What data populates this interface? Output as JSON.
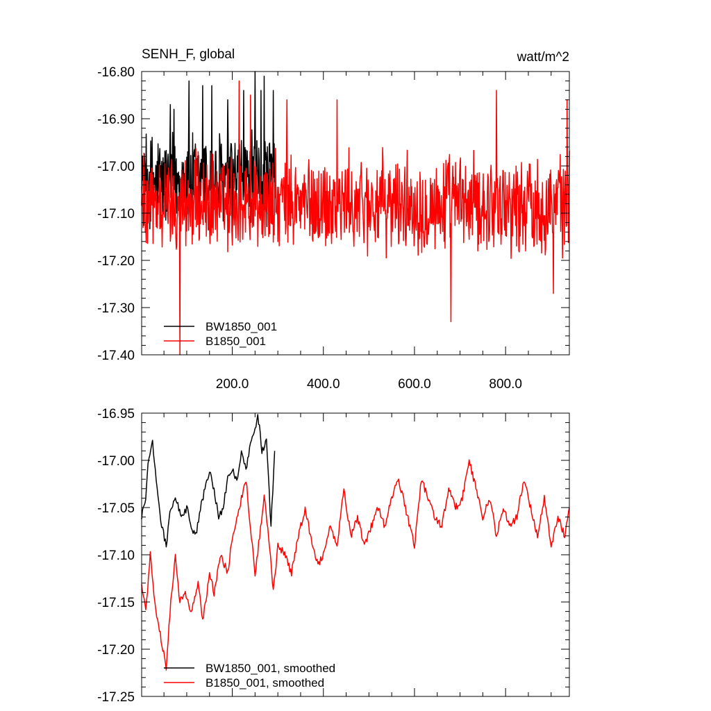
{
  "chart_data": [
    {
      "type": "line",
      "title": "SENH_F, global",
      "units": "watt/m^2",
      "xlim": [
        1,
        940
      ],
      "ylim": [
        -17.4,
        -16.8
      ],
      "yticks": [
        -17.4,
        -17.3,
        -17.2,
        -17.1,
        -17.0,
        -16.9,
        -16.8
      ],
      "ytick_labels": [
        "-17.40",
        "-17.30",
        "-17.20",
        "-17.10",
        "-17.00",
        "-16.90",
        "-16.80"
      ],
      "xticks": [
        200,
        400,
        600,
        800
      ],
      "xtick_labels": [
        "200.0",
        "400.0",
        "600.0",
        "800.0"
      ],
      "legend": "bottom-left",
      "series": [
        {
          "name": "BW1850_001",
          "color": "#000000",
          "x_range": [
            1,
            293
          ],
          "mean": -17.03,
          "spread": 0.11,
          "peaks": [
            [
              64,
              -16.87
            ],
            [
              72,
              -16.88
            ],
            [
              105,
              -16.82
            ],
            [
              135,
              -16.83
            ],
            [
              155,
              -16.83
            ],
            [
              190,
              -16.86
            ],
            [
              225,
              -16.84
            ],
            [
              250,
              -16.8
            ],
            [
              263,
              -16.84
            ],
            [
              270,
              -16.81
            ],
            [
              290,
              -16.84
            ]
          ]
        },
        {
          "name": "B1850_001",
          "color": "#ff0000",
          "x_range": [
            1,
            940
          ],
          "mean": -17.08,
          "spread": 0.11,
          "peaks": [
            [
              85,
              -17.4
            ],
            [
              215,
              -16.82
            ],
            [
              240,
              -16.85
            ],
            [
              320,
              -16.86
            ],
            [
              430,
              -16.86
            ],
            [
              680,
              -17.33
            ],
            [
              780,
              -16.84
            ],
            [
              905,
              -17.27
            ],
            [
              935,
              -16.86
            ]
          ]
        }
      ]
    },
    {
      "type": "line",
      "xlim": [
        1,
        940
      ],
      "ylim": [
        -17.25,
        -16.95
      ],
      "yticks": [
        -17.25,
        -17.2,
        -17.15,
        -17.1,
        -17.05,
        -17.0,
        -16.95
      ],
      "ytick_labels": [
        "-17.25",
        "-17.20",
        "-17.15",
        "-17.10",
        "-17.05",
        "-17.00",
        "-16.95"
      ],
      "xticks": [
        200,
        400,
        600,
        800
      ],
      "legend": "bottom-left",
      "series": [
        {
          "name": "BW1850_001, smoothed",
          "color": "#000000",
          "anchors": [
            [
              1,
              -17.06
            ],
            [
              10,
              -17.04
            ],
            [
              15,
              -17.0
            ],
            [
              25,
              -16.98
            ],
            [
              35,
              -17.03
            ],
            [
              45,
              -17.07
            ],
            [
              55,
              -17.09
            ],
            [
              65,
              -17.05
            ],
            [
              75,
              -17.04
            ],
            [
              90,
              -17.06
            ],
            [
              100,
              -17.05
            ],
            [
              110,
              -17.07
            ],
            [
              120,
              -17.08
            ],
            [
              130,
              -17.05
            ],
            [
              140,
              -17.03
            ],
            [
              150,
              -17.01
            ],
            [
              160,
              -17.03
            ],
            [
              170,
              -17.06
            ],
            [
              180,
              -17.05
            ],
            [
              190,
              -17.02
            ],
            [
              200,
              -17.01
            ],
            [
              210,
              -17.02
            ],
            [
              220,
              -16.99
            ],
            [
              230,
              -17.01
            ],
            [
              240,
              -16.98
            ],
            [
              250,
              -16.97
            ],
            [
              256,
              -16.95
            ],
            [
              265,
              -16.99
            ],
            [
              275,
              -16.98
            ],
            [
              285,
              -17.07
            ],
            [
              293,
              -16.99
            ]
          ]
        },
        {
          "name": "B1850_001, smoothed",
          "color": "#ff0000",
          "anchors": [
            [
              1,
              -17.13
            ],
            [
              10,
              -17.16
            ],
            [
              20,
              -17.1
            ],
            [
              30,
              -17.15
            ],
            [
              40,
              -17.18
            ],
            [
              55,
              -17.22
            ],
            [
              65,
              -17.15
            ],
            [
              75,
              -17.1
            ],
            [
              85,
              -17.15
            ],
            [
              95,
              -17.14
            ],
            [
              110,
              -17.16
            ],
            [
              125,
              -17.13
            ],
            [
              135,
              -17.17
            ],
            [
              150,
              -17.12
            ],
            [
              160,
              -17.14
            ],
            [
              175,
              -17.1
            ],
            [
              190,
              -17.12
            ],
            [
              200,
              -17.08
            ],
            [
              210,
              -17.06
            ],
            [
              220,
              -17.04
            ],
            [
              230,
              -17.02
            ],
            [
              240,
              -17.07
            ],
            [
              250,
              -17.12
            ],
            [
              260,
              -17.08
            ],
            [
              270,
              -17.04
            ],
            [
              280,
              -17.08
            ],
            [
              290,
              -17.14
            ],
            [
              300,
              -17.09
            ],
            [
              315,
              -17.1
            ],
            [
              330,
              -17.12
            ],
            [
              345,
              -17.08
            ],
            [
              360,
              -17.05
            ],
            [
              375,
              -17.09
            ],
            [
              390,
              -17.11
            ],
            [
              400,
              -17.1
            ],
            [
              415,
              -17.07
            ],
            [
              430,
              -17.09
            ],
            [
              445,
              -17.03
            ],
            [
              460,
              -17.08
            ],
            [
              475,
              -17.06
            ],
            [
              490,
              -17.09
            ],
            [
              505,
              -17.07
            ],
            [
              520,
              -17.05
            ],
            [
              535,
              -17.07
            ],
            [
              550,
              -17.04
            ],
            [
              565,
              -17.02
            ],
            [
              580,
              -17.05
            ],
            [
              600,
              -17.09
            ],
            [
              615,
              -17.02
            ],
            [
              630,
              -17.04
            ],
            [
              645,
              -17.06
            ],
            [
              660,
              -17.07
            ],
            [
              675,
              -17.03
            ],
            [
              690,
              -17.05
            ],
            [
              705,
              -17.04
            ],
            [
              720,
              -17.0
            ],
            [
              735,
              -17.03
            ],
            [
              750,
              -17.06
            ],
            [
              765,
              -17.04
            ],
            [
              780,
              -17.08
            ],
            [
              795,
              -17.05
            ],
            [
              810,
              -17.07
            ],
            [
              825,
              -17.06
            ],
            [
              840,
              -17.02
            ],
            [
              855,
              -17.05
            ],
            [
              870,
              -17.08
            ],
            [
              885,
              -17.04
            ],
            [
              900,
              -17.09
            ],
            [
              915,
              -17.06
            ],
            [
              930,
              -17.08
            ],
            [
              940,
              -17.05
            ]
          ]
        }
      ]
    }
  ]
}
